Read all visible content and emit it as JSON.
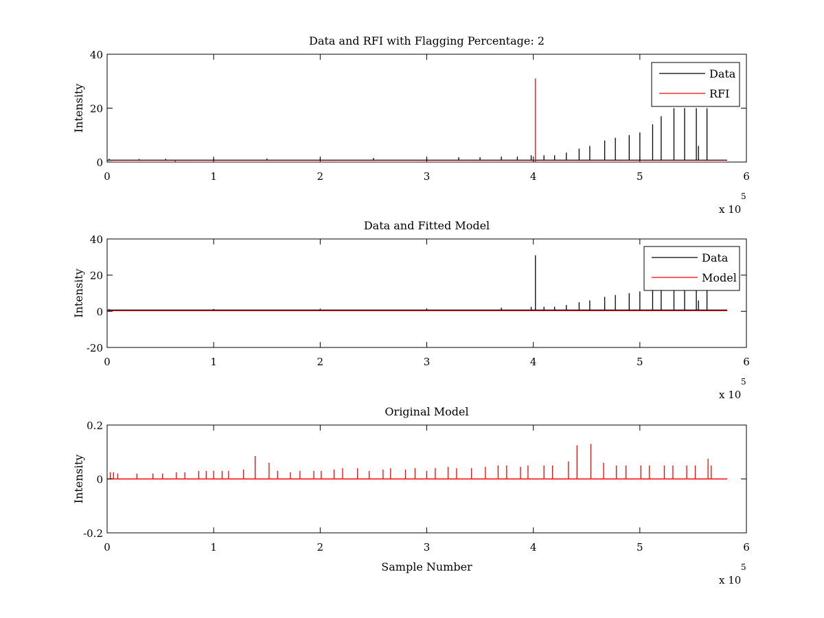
{
  "chart_data": [
    {
      "type": "line",
      "title": "Data and RFI with Flagging Percentage: 2",
      "xlabel": "",
      "ylabel": "Intensity",
      "xlim": [
        0,
        600000
      ],
      "ylim": [
        0,
        40
      ],
      "xticks": [
        "0",
        "1",
        "2",
        "3",
        "4",
        "5",
        "6"
      ],
      "yticks": [
        "0",
        "20",
        "40"
      ],
      "x_multiplier_label": "x 10",
      "x_multiplier_exponent": "5",
      "legend_position": "top-right",
      "series": [
        {
          "name": "Data",
          "color": "#000000",
          "baseline": 0.7,
          "spikes": [
            {
              "x": 2000,
              "y": 1.2
            },
            {
              "x": 30000,
              "y": 1.1
            },
            {
              "x": 55000,
              "y": 1.2
            },
            {
              "x": 100000,
              "y": 1.3
            },
            {
              "x": 150000,
              "y": 1.3
            },
            {
              "x": 200000,
              "y": 1.4
            },
            {
              "x": 250000,
              "y": 1.5
            },
            {
              "x": 300000,
              "y": 1.6
            },
            {
              "x": 330000,
              "y": 1.8
            },
            {
              "x": 350000,
              "y": 1.8
            },
            {
              "x": 370000,
              "y": 2
            },
            {
              "x": 385000,
              "y": 2
            },
            {
              "x": 398000,
              "y": 2.5
            },
            {
              "x": 410000,
              "y": 2.5
            },
            {
              "x": 420000,
              "y": 2.5
            },
            {
              "x": 431000,
              "y": 3.5
            },
            {
              "x": 443000,
              "y": 5
            },
            {
              "x": 453000,
              "y": 6
            },
            {
              "x": 467000,
              "y": 8
            },
            {
              "x": 477000,
              "y": 9
            },
            {
              "x": 490000,
              "y": 10
            },
            {
              "x": 500000,
              "y": 11
            },
            {
              "x": 512000,
              "y": 14
            },
            {
              "x": 520000,
              "y": 17
            },
            {
              "x": 532000,
              "y": 20
            },
            {
              "x": 542000,
              "y": 20
            },
            {
              "x": 553000,
              "y": 20
            },
            {
              "x": 555000,
              "y": 6
            },
            {
              "x": 563000,
              "y": 20
            }
          ]
        },
        {
          "name": "RFI",
          "color": "#ff0000",
          "baseline": 0,
          "spikes": [
            {
              "x": 402000,
              "y": 31
            },
            {
              "x": 64000,
              "y": 0.6
            }
          ]
        }
      ]
    },
    {
      "type": "line",
      "title": "Data and Fitted Model",
      "xlabel": "",
      "ylabel": "Intensity",
      "xlim": [
        0,
        600000
      ],
      "ylim": [
        -20,
        40
      ],
      "xticks": [
        "0",
        "1",
        "2",
        "3",
        "4",
        "5",
        "6"
      ],
      "yticks": [
        "-20",
        "0",
        "20",
        "40"
      ],
      "x_multiplier_label": "x 10",
      "x_multiplier_exponent": "5",
      "legend_position": "top-right",
      "series": [
        {
          "name": "Data",
          "color": "#000000",
          "baseline": 0.7,
          "spikes": [
            {
              "x": 2000,
              "y": 1.2
            },
            {
              "x": 100000,
              "y": 1.3
            },
            {
              "x": 200000,
              "y": 1.4
            },
            {
              "x": 300000,
              "y": 1.6
            },
            {
              "x": 370000,
              "y": 2
            },
            {
              "x": 398000,
              "y": 2.5
            },
            {
              "x": 402000,
              "y": 31
            },
            {
              "x": 410000,
              "y": 2.5
            },
            {
              "x": 420000,
              "y": 2.5
            },
            {
              "x": 431000,
              "y": 3.5
            },
            {
              "x": 443000,
              "y": 5
            },
            {
              "x": 453000,
              "y": 6
            },
            {
              "x": 467000,
              "y": 8
            },
            {
              "x": 477000,
              "y": 9
            },
            {
              "x": 490000,
              "y": 10
            },
            {
              "x": 500000,
              "y": 11
            },
            {
              "x": 512000,
              "y": 14
            },
            {
              "x": 520000,
              "y": 17
            },
            {
              "x": 532000,
              "y": 20
            },
            {
              "x": 542000,
              "y": 20
            },
            {
              "x": 553000,
              "y": 20
            },
            {
              "x": 555000,
              "y": 6
            },
            {
              "x": 563000,
              "y": 20
            }
          ]
        },
        {
          "name": "Model",
          "color": "#ff0000",
          "baseline": 0.3,
          "spikes": []
        }
      ]
    },
    {
      "type": "line",
      "title": "Original Model",
      "xlabel": "Sample Number",
      "ylabel": "Intensity",
      "xlim": [
        0,
        600000
      ],
      "ylim": [
        -0.2,
        0.2
      ],
      "xticks": [
        "0",
        "1",
        "2",
        "3",
        "4",
        "5",
        "6"
      ],
      "yticks": [
        "-0.2",
        "0",
        "0.2"
      ],
      "x_multiplier_label": "x 10",
      "x_multiplier_exponent": "5",
      "series": [
        {
          "color": "#ff0000",
          "baseline": 0,
          "x_end": 582000,
          "spikes": [
            {
              "x": 3000,
              "y": 0.025
            },
            {
              "x": 6000,
              "y": 0.025
            },
            {
              "x": 10000,
              "y": 0.02
            },
            {
              "x": 28000,
              "y": 0.02
            },
            {
              "x": 43000,
              "y": 0.02
            },
            {
              "x": 52000,
              "y": 0.02
            },
            {
              "x": 65000,
              "y": 0.025
            },
            {
              "x": 73000,
              "y": 0.025
            },
            {
              "x": 86000,
              "y": 0.03
            },
            {
              "x": 93000,
              "y": 0.03
            },
            {
              "x": 100000,
              "y": 0.03
            },
            {
              "x": 108000,
              "y": 0.03
            },
            {
              "x": 114000,
              "y": 0.03
            },
            {
              "x": 128000,
              "y": 0.035
            },
            {
              "x": 139000,
              "y": 0.085
            },
            {
              "x": 152000,
              "y": 0.06
            },
            {
              "x": 160000,
              "y": 0.03
            },
            {
              "x": 172000,
              "y": 0.025
            },
            {
              "x": 181000,
              "y": 0.03
            },
            {
              "x": 194000,
              "y": 0.03
            },
            {
              "x": 201000,
              "y": 0.03
            },
            {
              "x": 213000,
              "y": 0.035
            },
            {
              "x": 221000,
              "y": 0.04
            },
            {
              "x": 235000,
              "y": 0.04
            },
            {
              "x": 246000,
              "y": 0.03
            },
            {
              "x": 259000,
              "y": 0.035
            },
            {
              "x": 266000,
              "y": 0.04
            },
            {
              "x": 280000,
              "y": 0.035
            },
            {
              "x": 289000,
              "y": 0.04
            },
            {
              "x": 300000,
              "y": 0.03
            },
            {
              "x": 308000,
              "y": 0.04
            },
            {
              "x": 320000,
              "y": 0.045
            },
            {
              "x": 328000,
              "y": 0.04
            },
            {
              "x": 342000,
              "y": 0.04
            },
            {
              "x": 355000,
              "y": 0.045
            },
            {
              "x": 367000,
              "y": 0.05
            },
            {
              "x": 375000,
              "y": 0.05
            },
            {
              "x": 388000,
              "y": 0.045
            },
            {
              "x": 395000,
              "y": 0.05
            },
            {
              "x": 410000,
              "y": 0.05
            },
            {
              "x": 418000,
              "y": 0.05
            },
            {
              "x": 433000,
              "y": 0.065
            },
            {
              "x": 441000,
              "y": 0.125
            },
            {
              "x": 454000,
              "y": 0.13
            },
            {
              "x": 466000,
              "y": 0.06
            },
            {
              "x": 478000,
              "y": 0.05
            },
            {
              "x": 487000,
              "y": 0.05
            },
            {
              "x": 501000,
              "y": 0.05
            },
            {
              "x": 509000,
              "y": 0.05
            },
            {
              "x": 523000,
              "y": 0.05
            },
            {
              "x": 531000,
              "y": 0.05
            },
            {
              "x": 544000,
              "y": 0.05
            },
            {
              "x": 552000,
              "y": 0.05
            },
            {
              "x": 564000,
              "y": 0.075
            },
            {
              "x": 567000,
              "y": 0.05
            }
          ]
        }
      ]
    }
  ]
}
